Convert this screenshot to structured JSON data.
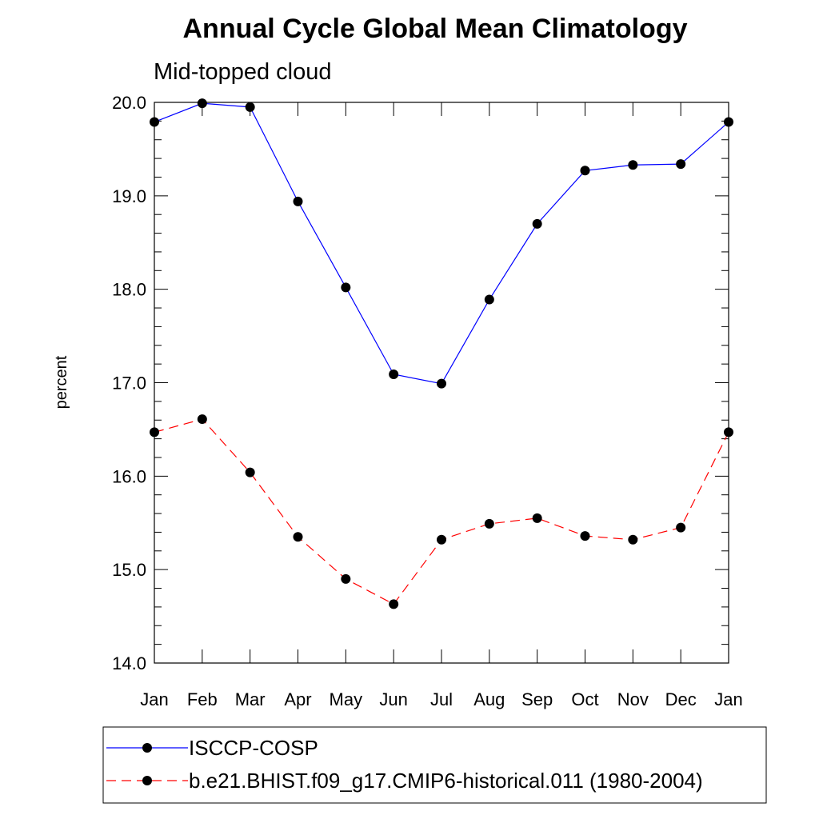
{
  "chart_data": {
    "type": "line",
    "title": "Annual Cycle Global Mean Climatology",
    "subtitle": "Mid-topped cloud",
    "ylabel": "percent",
    "xlabel": "",
    "ylim": [
      14.0,
      20.0
    ],
    "yticks": [
      "14.0",
      "15.0",
      "16.0",
      "17.0",
      "18.0",
      "19.0",
      "20.0"
    ],
    "categories": [
      "Jan",
      "Feb",
      "Mar",
      "Apr",
      "May",
      "Jun",
      "Jul",
      "Aug",
      "Sep",
      "Oct",
      "Nov",
      "Dec",
      "Jan"
    ],
    "grid": false,
    "legend_position": "bottom",
    "series": [
      {
        "name": "ISCCP-COSP",
        "color": "#0000ff",
        "line_style": "solid",
        "marker": "filled-circle",
        "values": [
          19.79,
          19.99,
          19.95,
          18.94,
          18.02,
          17.09,
          16.99,
          17.89,
          18.7,
          19.27,
          19.33,
          19.34,
          19.79
        ]
      },
      {
        "name": "b.e21.BHIST.f09_g17.CMIP6-historical.011 (1980-2004)",
        "color": "#ff0000",
        "line_style": "dashed",
        "marker": "filled-circle",
        "values": [
          16.47,
          16.61,
          16.04,
          15.35,
          14.9,
          14.63,
          15.32,
          15.49,
          15.55,
          15.36,
          15.32,
          15.45,
          16.47
        ]
      }
    ]
  }
}
